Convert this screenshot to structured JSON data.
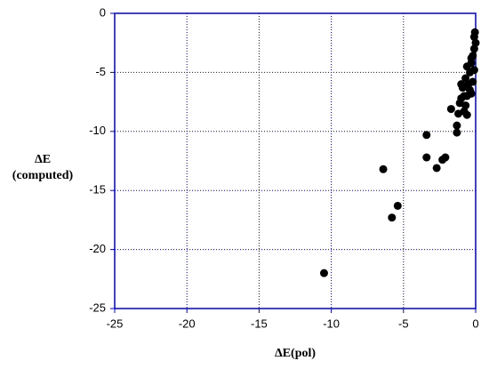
{
  "chart_data": {
    "type": "scatter",
    "xlabel": "ΔE(pol)",
    "ylabel": [
      "ΔE",
      "(computed)"
    ],
    "x": [
      -10.5,
      -5.8,
      -5.4,
      -6.4,
      -3.4,
      -3.4,
      -2.7,
      -2.3,
      -2.1,
      -1.3,
      -1.3,
      -1.7,
      -1.2,
      -0.8,
      -0.6,
      -0.7,
      -1.0,
      -0.6,
      -0.3,
      -0.9,
      -0.5,
      -0.2,
      -0.7,
      -0.4,
      -0.1,
      -0.6,
      -0.3,
      -0.2,
      -0.1,
      0,
      -0.1,
      -0.05,
      -0.3,
      -1.0,
      -0.8,
      -1.1,
      -0.4
    ],
    "values": [
      -22.0,
      -17.3,
      -16.3,
      -13.2,
      -12.2,
      -10.3,
      -13.1,
      -12.4,
      -12.2,
      -9.5,
      -10.1,
      -8.1,
      -8.5,
      -8.3,
      -8.6,
      -7.8,
      -7.2,
      -7.0,
      -6.8,
      -6.3,
      -6.0,
      -5.8,
      -5.5,
      -5.0,
      -4.8,
      -4.5,
      -4.2,
      -3.6,
      -3.0,
      -2.5,
      -2.0,
      -1.6,
      -3.8,
      -6.0,
      -7.0,
      -7.6,
      -6.5
    ],
    "color": "#000000",
    "xlim": [
      -25,
      0
    ],
    "xticks": [
      -25,
      -20,
      -15,
      -10,
      -5,
      0
    ],
    "ylim": [
      -25,
      0
    ],
    "yticks": [
      -25,
      -20,
      -15,
      -10,
      -5,
      0
    ],
    "grid": true,
    "grid_color": "#0000cc",
    "axis_color": "#0000cc"
  }
}
